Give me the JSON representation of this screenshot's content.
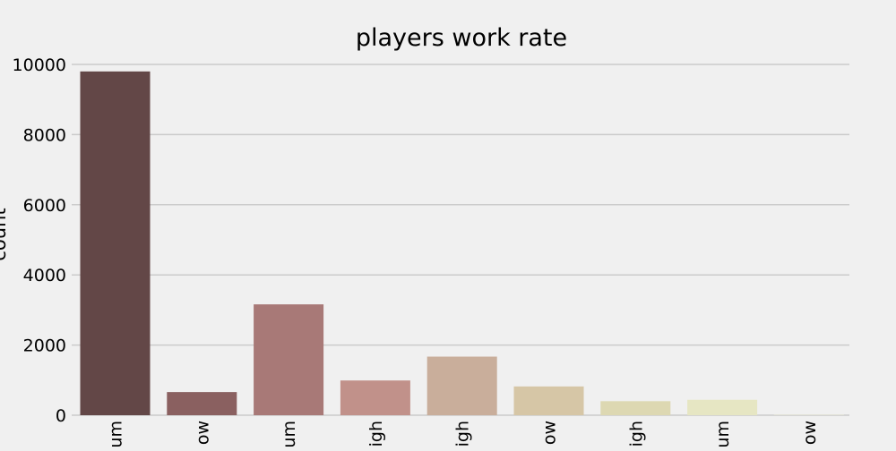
{
  "chart_data": {
    "type": "bar",
    "title": "players work rate",
    "xlabel": "",
    "ylabel": "count",
    "categories": [
      "um",
      "ow",
      "um",
      "igh",
      "igh",
      "ow",
      "igh",
      "um",
      "ow"
    ],
    "values": [
      9800,
      660,
      3160,
      990,
      1670,
      820,
      400,
      440,
      10
    ],
    "ylim": [
      0,
      10000
    ],
    "yticks": [
      "0",
      "2000",
      "4000",
      "6000",
      "8000",
      "10000"
    ],
    "grid": "horizontal",
    "legend": "none",
    "colors": [
      "#634747",
      "#8a6060",
      "#a87977",
      "#c1918a",
      "#c9ae9b",
      "#d6c6a6",
      "#ddd8b2",
      "#e6e6c3",
      "#efefd0"
    ],
    "grid_color": "#cbcbcb",
    "background": "#f0f0f0"
  }
}
